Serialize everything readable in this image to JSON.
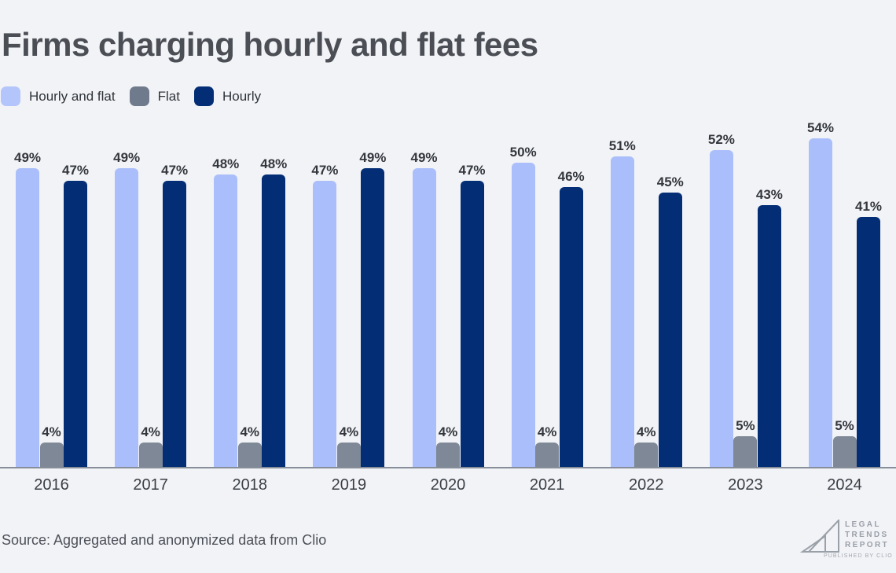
{
  "title": "Firms charging hourly and flat fees",
  "legend": [
    {
      "label": "Hourly and flat",
      "color": "#B3C5FA"
    },
    {
      "label": "Flat",
      "color": "#6F7B8C"
    },
    {
      "label": "Hourly",
      "color": "#032E75"
    }
  ],
  "chart_data": {
    "type": "bar",
    "title": "Firms charging hourly and flat fees",
    "categories": [
      "2016",
      "2017",
      "2018",
      "2019",
      "2020",
      "2021",
      "2022",
      "2023",
      "2024"
    ],
    "series": [
      {
        "name": "Hourly and flat",
        "color": "#A9BEFA",
        "values": [
          49,
          49,
          48,
          47,
          49,
          50,
          51,
          52,
          54
        ]
      },
      {
        "name": "Flat",
        "color": "#7E8896",
        "values": [
          4,
          4,
          4,
          4,
          4,
          4,
          4,
          5,
          5
        ]
      },
      {
        "name": "Hourly",
        "color": "#032E75",
        "values": [
          47,
          47,
          48,
          49,
          47,
          46,
          45,
          43,
          41
        ]
      }
    ],
    "value_suffix": "%",
    "xlabel": "",
    "ylabel": "",
    "ylim": [
      0,
      57
    ],
    "grid": false,
    "legend_position": "top-left",
    "data_labels": true
  },
  "source": "Source: Aggregated and anonymized data from Clio",
  "logo": {
    "lines": [
      "LEGAL",
      "TRENDS",
      "REPORT"
    ],
    "sub": "PUBLISHED BY CLIO"
  },
  "colors": {
    "background": "#F2F3F7",
    "title_text": "#4B4F55",
    "value_label_text": "#33373D",
    "axis_line": "#878E99",
    "year_text": "#3A3F45",
    "source_text": "#4C5058",
    "logo_gray": "#9AA0A8"
  }
}
